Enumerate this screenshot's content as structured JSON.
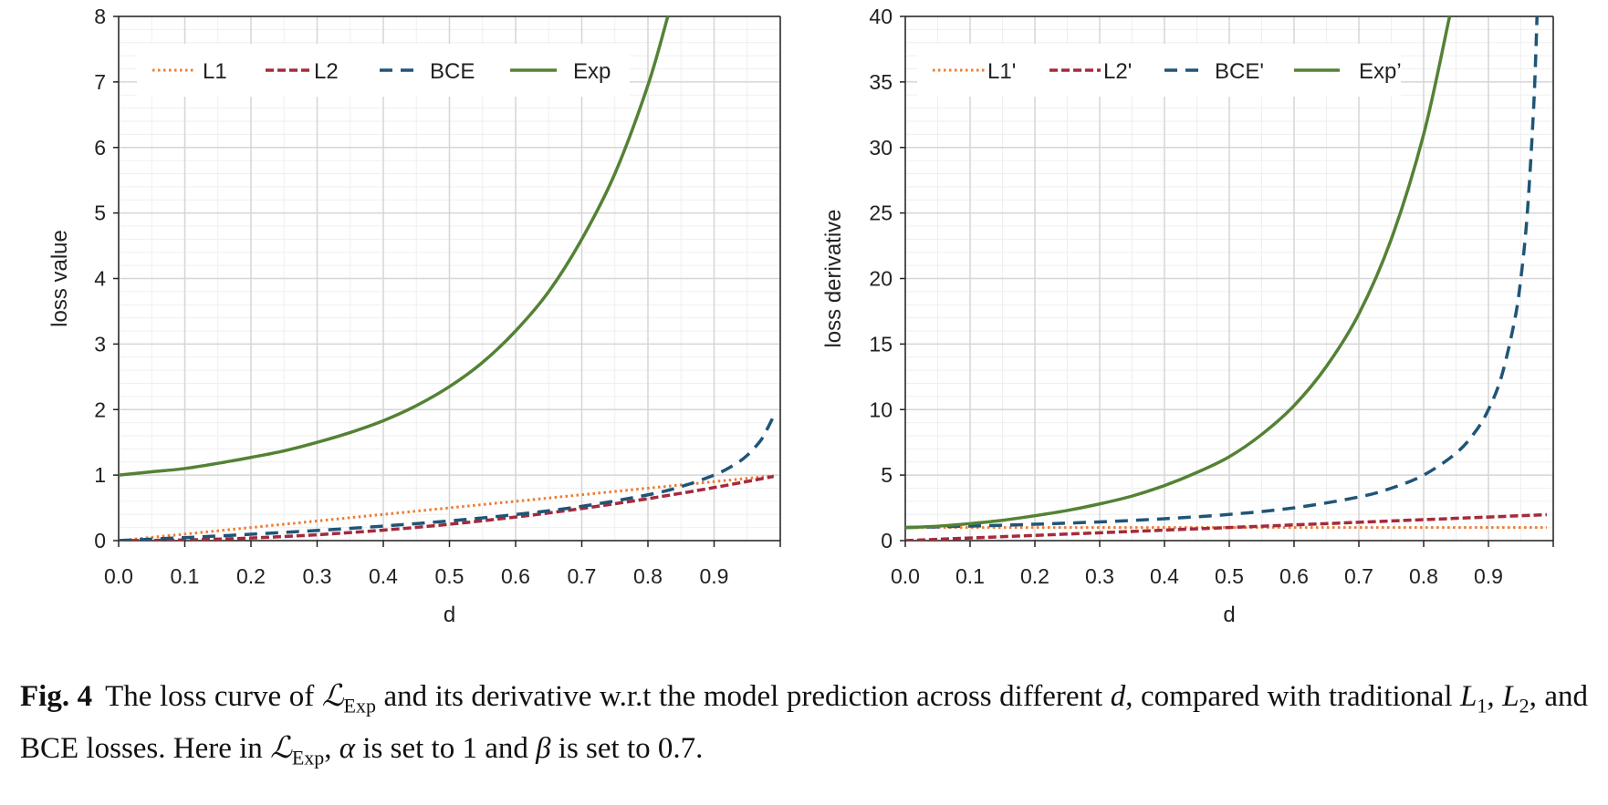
{
  "chart_data": [
    {
      "type": "line",
      "xlabel": "d",
      "ylabel": "loss value",
      "xlim": [
        0,
        1
      ],
      "ylim": [
        0,
        8
      ],
      "x_ticks": [
        "0.0",
        "0.1",
        "0.2",
        "0.3",
        "0.4",
        "0.5",
        "0.6",
        "0.7",
        "0.8",
        "0.9"
      ],
      "y_ticks": [
        "0",
        "1",
        "2",
        "3",
        "4",
        "5",
        "6",
        "7",
        "8"
      ],
      "grid": true,
      "legend_position": "top",
      "series": [
        {
          "name": "L1",
          "color": "#ed7d31",
          "style": "dotted",
          "x": [
            0,
            0.1,
            0.2,
            0.3,
            0.4,
            0.5,
            0.6,
            0.7,
            0.8,
            0.9,
            0.99
          ],
          "y": [
            0,
            0.1,
            0.2,
            0.3,
            0.4,
            0.5,
            0.6,
            0.7,
            0.8,
            0.9,
            0.99
          ]
        },
        {
          "name": "L2",
          "color": "#a52a3c",
          "style": "dashed",
          "x": [
            0,
            0.1,
            0.2,
            0.3,
            0.4,
            0.5,
            0.6,
            0.7,
            0.8,
            0.9,
            0.99
          ],
          "y": [
            0,
            0.01,
            0.04,
            0.09,
            0.16,
            0.25,
            0.36,
            0.49,
            0.64,
            0.81,
            0.98
          ]
        },
        {
          "name": "BCE",
          "color": "#1f5577",
          "style": "longdash",
          "x": [
            0,
            0.1,
            0.2,
            0.3,
            0.4,
            0.5,
            0.6,
            0.7,
            0.8,
            0.85,
            0.9,
            0.93,
            0.95,
            0.97,
            0.98,
            0.99
          ],
          "y": [
            0,
            0.046,
            0.097,
            0.155,
            0.222,
            0.301,
            0.398,
            0.523,
            0.699,
            0.824,
            1.0,
            1.155,
            1.301,
            1.523,
            1.699,
            1.9
          ]
        },
        {
          "name": "Exp",
          "color": "#548235",
          "style": "solid",
          "x": [
            0,
            0.05,
            0.1,
            0.15,
            0.2,
            0.25,
            0.3,
            0.35,
            0.4,
            0.45,
            0.5,
            0.55,
            0.6,
            0.65,
            0.7,
            0.75,
            0.8,
            0.83
          ],
          "y": [
            1,
            1.05,
            1.1,
            1.18,
            1.27,
            1.37,
            1.5,
            1.65,
            1.83,
            2.06,
            2.35,
            2.72,
            3.2,
            3.8,
            4.6,
            5.6,
            6.95,
            8.0
          ]
        }
      ]
    },
    {
      "type": "line",
      "xlabel": "d",
      "ylabel": "loss derivative",
      "xlim": [
        0,
        1
      ],
      "ylim": [
        0,
        40
      ],
      "x_ticks": [
        "0.0",
        "0.1",
        "0.2",
        "0.3",
        "0.4",
        "0.5",
        "0.6",
        "0.7",
        "0.8",
        "0.9"
      ],
      "y_ticks": [
        "0",
        "5",
        "10",
        "15",
        "20",
        "25",
        "30",
        "35",
        "40"
      ],
      "grid": true,
      "legend_position": "top",
      "series": [
        {
          "name": "L1'",
          "color": "#ed7d31",
          "style": "dotted",
          "x": [
            0,
            0.5,
            0.99
          ],
          "y": [
            1,
            1,
            1
          ]
        },
        {
          "name": "L2'",
          "color": "#a52a3c",
          "style": "dashed",
          "x": [
            0,
            0.5,
            0.99
          ],
          "y": [
            0,
            1,
            1.98
          ]
        },
        {
          "name": "BCE'",
          "color": "#1f5577",
          "style": "longdash",
          "x": [
            0,
            0.1,
            0.2,
            0.3,
            0.4,
            0.5,
            0.6,
            0.7,
            0.75,
            0.8,
            0.85,
            0.88,
            0.9,
            0.92,
            0.94,
            0.95,
            0.96,
            0.97,
            0.975
          ],
          "y": [
            1,
            1.11,
            1.25,
            1.43,
            1.67,
            2,
            2.5,
            3.33,
            4,
            5,
            6.67,
            8.33,
            10,
            12.5,
            16.7,
            20,
            25,
            33.3,
            40
          ]
        },
        {
          "name": "Exp’",
          "color": "#548235",
          "style": "solid",
          "x": [
            0,
            0.05,
            0.1,
            0.15,
            0.2,
            0.25,
            0.3,
            0.35,
            0.4,
            0.45,
            0.5,
            0.55,
            0.6,
            0.65,
            0.7,
            0.75,
            0.8,
            0.84
          ],
          "y": [
            1,
            1.1,
            1.3,
            1.55,
            1.9,
            2.3,
            2.8,
            3.4,
            4.2,
            5.2,
            6.4,
            8.1,
            10.3,
            13.3,
            17.3,
            23,
            31,
            40
          ]
        }
      ]
    }
  ],
  "caption": {
    "label": "Fig. 4",
    "t1": "The loss curve of ",
    "script_l": "ℒ",
    "sub_exp": "Exp",
    "t2": " and its derivative w.r.t the model prediction across different ",
    "d": "d",
    "t3": ", compared with traditional ",
    "L": "L",
    "one": "1",
    "two": "2",
    "t4": ", ",
    "t5": ", and BCE losses. Here in ",
    "t6": ", ",
    "alpha": "α",
    "t7": " is set to 1 and ",
    "beta": "β",
    "t8": " is set to 0.7."
  }
}
